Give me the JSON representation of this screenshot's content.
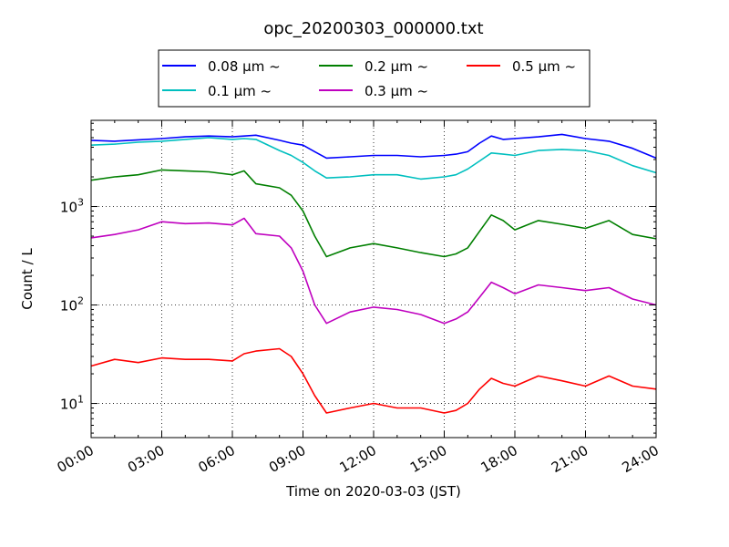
{
  "chart_data": {
    "type": "line",
    "title": "opc_20200303_000000.txt",
    "xlabel": "Time on 2020-03-03 (JST)",
    "ylabel": "Count / L",
    "xlim": [
      "00:00",
      "24:00"
    ],
    "ylim": [
      4.5,
      7500
    ],
    "yscale": "log",
    "grid": true,
    "legend": {
      "placement": "top-center, above plot",
      "ncol": 3
    },
    "x_ticks": [
      "00:00",
      "03:00",
      "06:00",
      "09:00",
      "12:00",
      "15:00",
      "18:00",
      "21:00",
      "24:00"
    ],
    "y_ticks": [
      {
        "value": 10,
        "base": "10",
        "exp": "1"
      },
      {
        "value": 100,
        "base": "10",
        "exp": "2"
      },
      {
        "value": 1000,
        "base": "10",
        "exp": "3"
      }
    ],
    "x": [
      "00:00",
      "01:00",
      "02:00",
      "03:00",
      "04:00",
      "05:00",
      "06:00",
      "06:30",
      "07:00",
      "08:00",
      "08:30",
      "09:00",
      "09:30",
      "10:00",
      "11:00",
      "12:00",
      "13:00",
      "14:00",
      "15:00",
      "15:30",
      "16:00",
      "16:30",
      "17:00",
      "17:30",
      "18:00",
      "19:00",
      "20:00",
      "21:00",
      "22:00",
      "23:00",
      "24:00"
    ],
    "series": [
      {
        "name": "0.08 μm ~",
        "color": "#0000ff",
        "values": [
          4700,
          4600,
          4750,
          4900,
          5100,
          5200,
          5100,
          5200,
          5300,
          4700,
          4400,
          4200,
          3600,
          3100,
          3200,
          3300,
          3300,
          3200,
          3300,
          3400,
          3600,
          4400,
          5200,
          4800,
          4900,
          5100,
          5400,
          4900,
          4600,
          3900,
          3100
        ]
      },
      {
        "name": "0.1 μm ~",
        "color": "#00bfbf",
        "values": [
          4200,
          4300,
          4500,
          4600,
          4800,
          5000,
          4800,
          4900,
          4800,
          3700,
          3300,
          2800,
          2300,
          1950,
          2000,
          2100,
          2100,
          1900,
          2000,
          2100,
          2400,
          2900,
          3500,
          3400,
          3300,
          3700,
          3800,
          3700,
          3300,
          2600,
          2200
        ]
      },
      {
        "name": "0.2 μm ~",
        "color": "#007f00",
        "values": [
          1850,
          2000,
          2100,
          2350,
          2300,
          2250,
          2100,
          2300,
          1700,
          1550,
          1300,
          900,
          500,
          310,
          380,
          420,
          380,
          340,
          310,
          330,
          380,
          560,
          820,
          720,
          580,
          720,
          660,
          600,
          720,
          520,
          470
        ]
      },
      {
        "name": "0.3 μm ~",
        "color": "#bf00bf",
        "values": [
          480,
          520,
          580,
          700,
          670,
          680,
          650,
          760,
          530,
          500,
          380,
          220,
          100,
          65,
          85,
          95,
          90,
          80,
          65,
          72,
          85,
          120,
          170,
          150,
          130,
          160,
          150,
          140,
          150,
          115,
          100
        ]
      },
      {
        "name": "0.5 μm ~",
        "color": "#ff0000",
        "values": [
          24,
          28,
          26,
          29,
          28,
          28,
          27,
          32,
          34,
          36,
          30,
          20,
          12,
          8,
          9,
          10,
          9,
          9,
          8,
          8.5,
          10,
          14,
          18,
          16,
          15,
          19,
          17,
          15,
          19,
          15,
          14
        ]
      }
    ]
  }
}
